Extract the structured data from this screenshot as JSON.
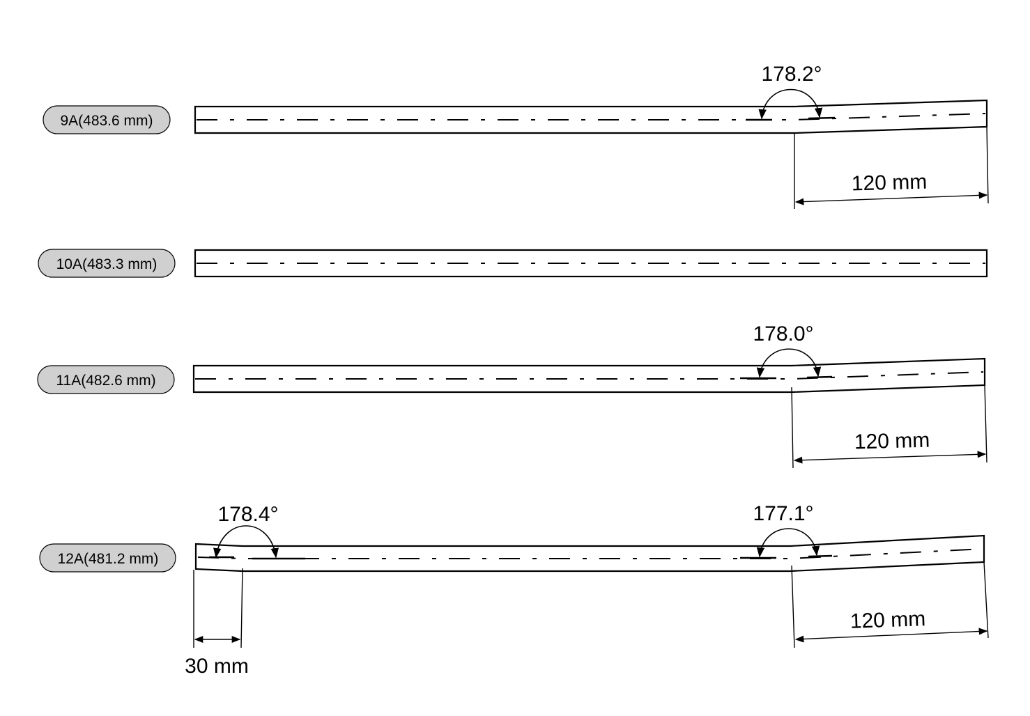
{
  "specimens": [
    {
      "label": "9A(483.6 mm)",
      "angles": [
        "178.2°"
      ],
      "dimensions": [
        "120 mm"
      ]
    },
    {
      "label": "10A(483.3 mm)",
      "angles": [],
      "dimensions": []
    },
    {
      "label": "11A(482.6 mm)",
      "angles": [
        "178.0°"
      ],
      "dimensions": [
        "120 mm"
      ]
    },
    {
      "label": "12A(481.2 mm)",
      "angles": [
        "178.4°",
        "177.1°"
      ],
      "dimensions": [
        "30 mm",
        "120 mm"
      ]
    }
  ]
}
